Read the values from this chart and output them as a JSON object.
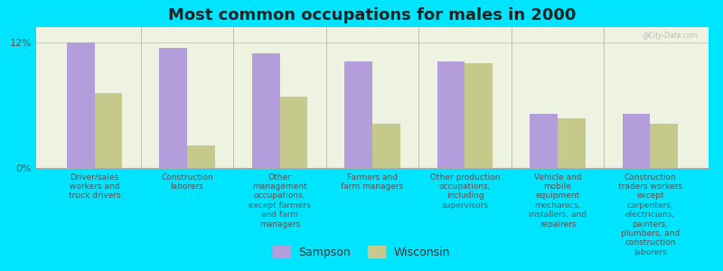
{
  "title": "Most common occupations for males in 2000",
  "categories": [
    "Driver/sales\nworkers and\ntruck drivers",
    "Construction\nlaborers",
    "Other\nmanagement\noccupations,\nexcept farmers\nand farm\nmanagers",
    "Farmers and\nfarm managers",
    "Other production\noccupations,\nincluding\nsupervisors",
    "Vehicle and\nmobile\nequipment\nmechanics,\ninstallers, and\nrepairers",
    "Construction\ntraders workers\nexcept\ncarpenters,\nelectricians,\npainters,\nplumbers, and\nconstruction\nlaborers"
  ],
  "sampson_values": [
    12.0,
    11.5,
    11.0,
    10.2,
    10.2,
    5.2,
    5.2
  ],
  "wisconsin_values": [
    7.2,
    2.2,
    6.8,
    4.2,
    10.0,
    4.8,
    4.2
  ],
  "sampson_color": "#b39ddb",
  "wisconsin_color": "#c5c98a",
  "background_color": "#00e5ff",
  "plot_bg_color": "#eef2e0",
  "ylim": [
    0,
    13.5
  ],
  "ytick_vals": [
    0,
    12
  ],
  "ytick_labels": [
    "0%",
    "12%"
  ],
  "bar_width": 0.3,
  "legend_labels": [
    "Sampson",
    "Wisconsin"
  ],
  "watermark": "@City-Data.com",
  "title_fontsize": 13,
  "xlabel_fontsize": 6.5,
  "legend_fontsize": 9
}
